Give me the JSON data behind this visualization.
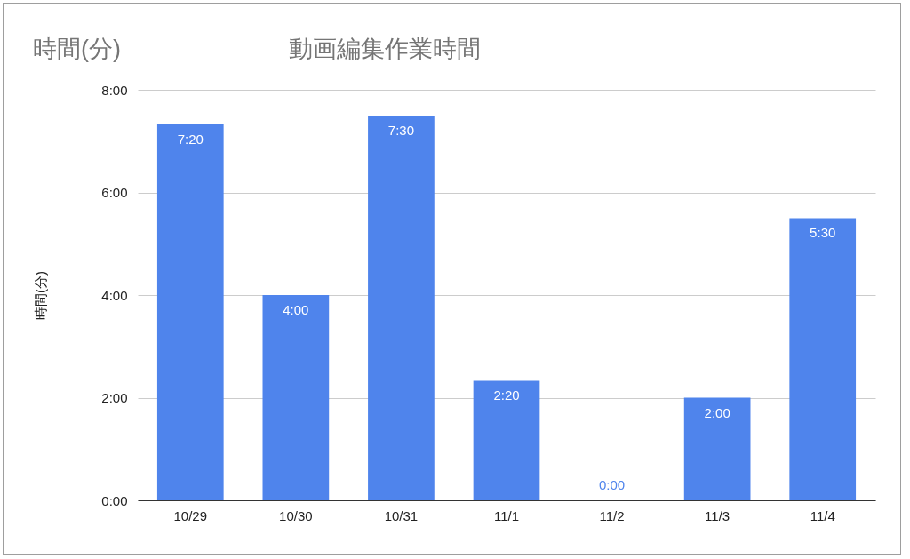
{
  "chart_data": {
    "type": "bar",
    "title": "動画編集作業時間",
    "ylabel": "時間(分)",
    "annotations": [
      "時間(分)"
    ],
    "categories": [
      "10/29",
      "10/30",
      "10/31",
      "11/1",
      "11/2",
      "11/3",
      "11/4"
    ],
    "values": [
      7.33,
      4,
      7.5,
      2.33,
      0,
      2,
      5.5
    ],
    "value_labels": [
      "7:20",
      "4:00",
      "7:30",
      "2:20",
      "0:00",
      "2:00",
      "5:30"
    ],
    "color": "#4f84ec",
    "ylim": [
      0,
      8
    ],
    "yticks": [
      {
        "value": 0,
        "label": "0:00"
      },
      {
        "value": 2,
        "label": "2:00"
      },
      {
        "value": 4,
        "label": "4:00"
      },
      {
        "value": 6,
        "label": "6:00"
      },
      {
        "value": 8,
        "label": "8:00"
      }
    ],
    "grid": "y"
  }
}
